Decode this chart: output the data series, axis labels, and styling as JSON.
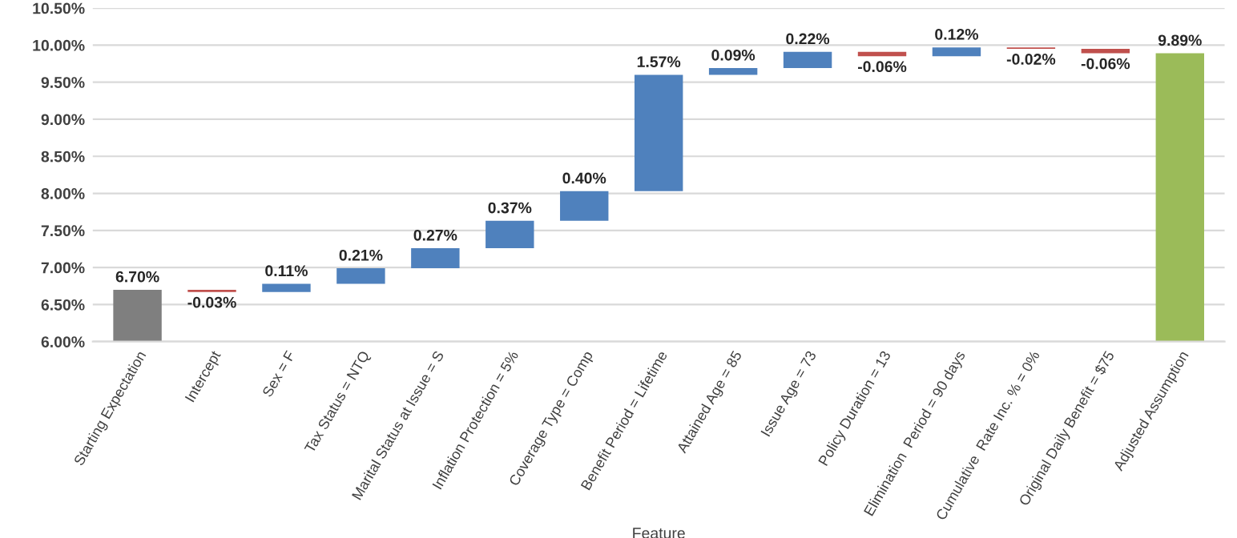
{
  "chart_data": {
    "type": "bar",
    "xlabel": "Feature",
    "categories": [
      "Starting Expectation",
      "Intercept",
      "Sex = F",
      "Tax Status = NTQ",
      "Marital Status at Issue = S",
      "Inflation Protection = 5%",
      "Coverage Type = Comp",
      "Benefit Period = Lifetime",
      "Attained Age = 85",
      "Issue Age = 73",
      "Policy Duration = 13",
      "Elimination  Period = 90 days",
      "Cumulative  Rate Inc. % = 0%",
      "Original Daily Benefit = $75",
      "Adjusted Assumption"
    ],
    "values": [
      6.7,
      -0.03,
      0.11,
      0.21,
      0.27,
      0.37,
      0.4,
      1.57,
      0.09,
      0.22,
      -0.06,
      0.12,
      -0.02,
      -0.06,
      9.89
    ],
    "base": [
      0,
      6.7,
      6.67,
      6.78,
      6.99,
      7.26,
      7.63,
      8.03,
      9.6,
      9.69,
      9.91,
      9.85,
      9.97,
      9.95,
      0
    ],
    "colors": [
      "#7f7f7f",
      "#c0504d",
      "#4f81bd",
      "#4f81bd",
      "#4f81bd",
      "#4f81bd",
      "#4f81bd",
      "#4f81bd",
      "#4f81bd",
      "#4f81bd",
      "#c0504d",
      "#4f81bd",
      "#c0504d",
      "#c0504d",
      "#9bbb59"
    ],
    "value_labels": [
      "6.70%",
      "-0.03%",
      "0.11%",
      "0.21%",
      "0.27%",
      "0.37%",
      "0.40%",
      "1.57%",
      "0.09%",
      "0.22%",
      "-0.06%",
      "0.12%",
      "-0.02%",
      "-0.06%",
      "9.89%"
    ],
    "ylim": [
      6.0,
      10.5
    ],
    "yticks": [
      {
        "value": 6.0,
        "label": "6.00%"
      },
      {
        "value": 6.5,
        "label": "6.50%"
      },
      {
        "value": 7.0,
        "label": "7.00%"
      },
      {
        "value": 7.5,
        "label": "7.50%"
      },
      {
        "value": 8.0,
        "label": "8.00%"
      },
      {
        "value": 8.5,
        "label": "8.50%"
      },
      {
        "value": 9.0,
        "label": "9.00%"
      },
      {
        "value": 9.5,
        "label": "9.50%"
      },
      {
        "value": 10.0,
        "label": "10.00%"
      },
      {
        "value": 10.5,
        "label": "10.50%"
      }
    ],
    "grid": "y"
  }
}
